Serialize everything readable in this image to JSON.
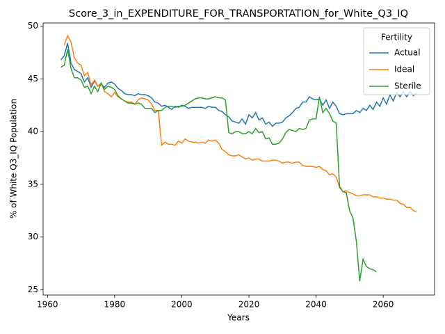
{
  "chart_data": {
    "type": "line",
    "title": "Score_3_in_EXPENDITURE_FOR_TRANSPORTATION_for_White_Q3_IQ",
    "xlabel": "Years",
    "ylabel": "% of White Q3_IQ Population",
    "legend_title": "Fertility",
    "legend": "upper right",
    "grid": false,
    "xlim": [
      1958.7,
      2075.3
    ],
    "xticks": [
      1960,
      1980,
      2000,
      2020,
      2040,
      2060
    ],
    "ylim": [
      24.5,
      50.3
    ],
    "yticks": [
      25,
      30,
      35,
      40,
      45,
      50
    ],
    "x": [
      1964,
      1965,
      1966,
      1967,
      1968,
      1969,
      1970,
      1971,
      1972,
      1973,
      1974,
      1975,
      1976,
      1977,
      1978,
      1979,
      1980,
      1981,
      1982,
      1983,
      1984,
      1985,
      1986,
      1987,
      1988,
      1989,
      1990,
      1991,
      1992,
      1993,
      1994,
      1995,
      1996,
      1997,
      1998,
      1999,
      2000,
      2001,
      2002,
      2003,
      2004,
      2005,
      2006,
      2007,
      2008,
      2009,
      2010,
      2011,
      2012,
      2013,
      2014,
      2015,
      2016,
      2017,
      2018,
      2019,
      2020,
      2021,
      2022,
      2023,
      2024,
      2025,
      2026,
      2027,
      2028,
      2029,
      2030,
      2031,
      2032,
      2033,
      2034,
      2035,
      2036,
      2037,
      2038,
      2039,
      2040,
      2041,
      2042,
      2043,
      2044,
      2045,
      2046,
      2047,
      2048,
      2049,
      2050,
      2051,
      2052,
      2053,
      2054,
      2055,
      2056,
      2057,
      2058,
      2059,
      2060,
      2061,
      2062,
      2063,
      2064,
      2065,
      2066,
      2067,
      2068,
      2069,
      2070
    ],
    "series": [
      {
        "name": "Actual",
        "color": "#1f77b4",
        "values": [
          46.8,
          47.2,
          48.4,
          46.5,
          45.9,
          45.7,
          45.5,
          44.7,
          45.1,
          44.2,
          44.8,
          44.3,
          44.5,
          44.2,
          44.6,
          44.7,
          44.5,
          44.1,
          43.9,
          43.6,
          43.5,
          43.5,
          43.4,
          43.6,
          43.5,
          43.5,
          43.4,
          43.2,
          42.8,
          42.7,
          42.4,
          42.5,
          42.3,
          42.1,
          42.4,
          42.3,
          42.5,
          42.4,
          42.2,
          42.3,
          42.3,
          42.3,
          42.3,
          42.2,
          42.4,
          42.3,
          42.3,
          42.0,
          41.9,
          41.6,
          41.4,
          41.0,
          40.9,
          40.8,
          41.2,
          40.7,
          41.6,
          41.3,
          41.8,
          41.1,
          41.3,
          40.7,
          40.9,
          40.5,
          40.8,
          40.8,
          40.9,
          41.3,
          41.5,
          41.8,
          42.2,
          42.3,
          42.8,
          42.8,
          43.3,
          43.1,
          43.0,
          43.1,
          42.5,
          43.0,
          42.2,
          42.8,
          42.4,
          41.7,
          41.6,
          41.7,
          41.7,
          41.7,
          42.0,
          41.8,
          42.2,
          42.0,
          42.5,
          42.1,
          42.8,
          42.4,
          43.2,
          42.6,
          43.5,
          42.9,
          43.7,
          43.3,
          43.8,
          43.3,
          43.8,
          43.4,
          43.7
        ]
      },
      {
        "name": "Ideal",
        "color": "#ff7f0e",
        "values": [
          null,
          48.2,
          49.1,
          48.5,
          47.0,
          46.5,
          46.3,
          45.3,
          45.6,
          44.4,
          44.9,
          44.3,
          44.6,
          43.8,
          43.6,
          43.3,
          43.7,
          43.3,
          43.1,
          42.9,
          42.8,
          42.8,
          42.6,
          43.0,
          43.2,
          43.1,
          43.0,
          42.6,
          42.0,
          42.0,
          38.7,
          39.0,
          38.8,
          38.8,
          38.7,
          39.1,
          38.9,
          39.3,
          39.1,
          39.0,
          39.0,
          38.9,
          39.0,
          38.9,
          39.2,
          39.1,
          39.2,
          38.9,
          38.3,
          38.1,
          37.8,
          37.7,
          37.7,
          37.8,
          37.6,
          37.4,
          37.5,
          37.3,
          37.4,
          37.4,
          37.2,
          37.2,
          37.2,
          37.3,
          37.3,
          37.2,
          37.0,
          37.1,
          37.1,
          37.0,
          37.1,
          37.1,
          36.8,
          36.7,
          36.7,
          36.7,
          36.6,
          36.7,
          36.4,
          36.3,
          35.9,
          36.0,
          35.7,
          34.7,
          34.3,
          34.4,
          34.2,
          34.1,
          33.9,
          33.9,
          34.0,
          34.0,
          34.0,
          33.8,
          33.8,
          33.7,
          33.7,
          33.6,
          33.6,
          33.5,
          33.5,
          33.2,
          33.1,
          32.8,
          32.8,
          32.5,
          32.4
        ]
      },
      {
        "name": "Sterile",
        "color": "#2ca02c",
        "values": [
          46.1,
          46.3,
          47.8,
          46.0,
          45.1,
          45.1,
          44.9,
          44.2,
          44.3,
          43.6,
          44.3,
          43.8,
          44.6,
          44.0,
          44.3,
          44.2,
          44.0,
          43.4,
          43.1,
          42.9,
          42.7,
          42.7,
          42.6,
          42.7,
          42.6,
          42.2,
          42.2,
          42.2,
          41.8,
          42.0,
          42.0,
          42.3,
          42.4,
          42.4,
          42.3,
          42.4,
          42.4,
          42.5,
          42.7,
          42.9,
          43.1,
          43.2,
          43.2,
          43.1,
          43.1,
          43.2,
          43.3,
          43.2,
          43.2,
          43.0,
          39.9,
          39.8,
          40.0,
          40.0,
          39.8,
          39.8,
          40.0,
          39.8,
          40.3,
          39.9,
          40.0,
          39.3,
          39.4,
          38.8,
          38.8,
          38.9,
          39.3,
          39.9,
          40.2,
          40.1,
          40.0,
          40.3,
          40.2,
          40.3,
          41.1,
          41.2,
          41.2,
          43.3,
          41.8,
          42.2,
          41.7,
          41.0,
          40.8,
          34.8,
          34.3,
          34.2,
          32.5,
          31.8,
          29.6,
          25.8,
          27.9,
          27.2,
          27.0,
          26.9,
          26.7,
          null,
          null,
          null,
          null,
          null,
          null,
          null,
          null,
          null,
          null,
          null,
          null
        ]
      }
    ]
  }
}
